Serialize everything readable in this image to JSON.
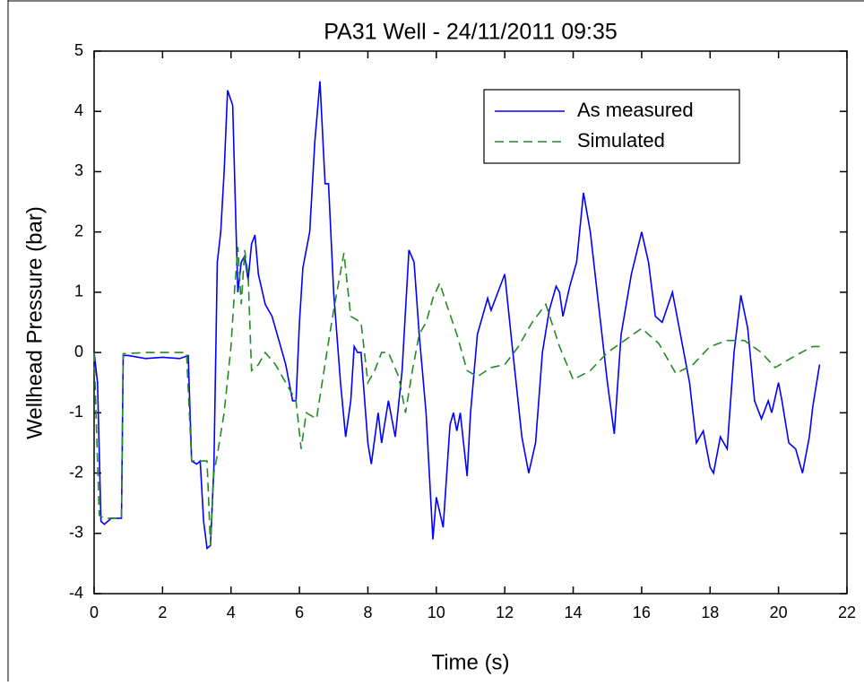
{
  "chart_data": {
    "type": "line",
    "title": "PA31 Well - 24/11/2011 09:35",
    "xlabel": "Time (s)",
    "ylabel": "Wellhead Pressure (bar)",
    "xlim": [
      0,
      22
    ],
    "ylim": [
      -4,
      5
    ],
    "xticks": [
      0,
      2,
      4,
      6,
      8,
      10,
      12,
      14,
      16,
      18,
      20,
      22
    ],
    "yticks": [
      -4,
      -3,
      -2,
      -1,
      0,
      1,
      2,
      3,
      4,
      5
    ],
    "legend": "upper right",
    "series": [
      {
        "name": "As measured",
        "color": "#0000ff",
        "dash": "solid",
        "x": [
          0,
          0.1,
          0.2,
          0.3,
          0.5,
          0.7,
          0.8,
          0.85,
          1.0,
          1.5,
          2.0,
          2.5,
          2.75,
          2.85,
          3.0,
          3.1,
          3.2,
          3.3,
          3.4,
          3.5,
          3.6,
          3.7,
          3.8,
          3.9,
          4.05,
          4.15,
          4.2,
          4.3,
          4.4,
          4.5,
          4.6,
          4.7,
          4.8,
          5.0,
          5.2,
          5.4,
          5.6,
          5.8,
          5.9,
          6.0,
          6.1,
          6.3,
          6.45,
          6.6,
          6.75,
          6.85,
          7.0,
          7.2,
          7.35,
          7.5,
          7.6,
          7.7,
          7.8,
          8.0,
          8.1,
          8.3,
          8.4,
          8.6,
          8.8,
          9.0,
          9.2,
          9.35,
          9.5,
          9.7,
          9.9,
          10.0,
          10.2,
          10.4,
          10.5,
          10.6,
          10.7,
          10.9,
          11.0,
          11.2,
          11.5,
          11.6,
          11.8,
          12.0,
          12.2,
          12.5,
          12.7,
          12.9,
          13.1,
          13.3,
          13.5,
          13.6,
          13.7,
          13.9,
          14.1,
          14.3,
          14.5,
          14.8,
          15.0,
          15.2,
          15.4,
          15.7,
          16.0,
          16.2,
          16.4,
          16.6,
          16.9,
          17.1,
          17.4,
          17.6,
          17.8,
          18.0,
          18.1,
          18.3,
          18.5,
          18.7,
          18.9,
          19.1,
          19.3,
          19.5,
          19.7,
          19.8,
          20.0,
          20.1,
          20.3,
          20.5,
          20.7,
          20.9,
          21.0,
          21.2
        ],
        "values": [
          0,
          -0.5,
          -2.8,
          -2.85,
          -2.75,
          -2.75,
          -2.75,
          -0.05,
          -0.05,
          -0.1,
          -0.08,
          -0.1,
          -0.05,
          -1.8,
          -1.85,
          -1.8,
          -2.8,
          -3.25,
          -3.2,
          -1.9,
          1.5,
          2.0,
          3.0,
          4.35,
          4.1,
          2.0,
          1.0,
          1.5,
          1.6,
          1.2,
          1.8,
          1.95,
          1.3,
          0.8,
          0.6,
          0.2,
          -0.2,
          -0.8,
          -0.8,
          0.5,
          1.4,
          2.0,
          3.5,
          4.5,
          2.8,
          2.8,
          1.0,
          -0.5,
          -1.4,
          -0.8,
          0.1,
          0.0,
          0.0,
          -1.5,
          -1.85,
          -1.0,
          -1.5,
          -0.8,
          -1.4,
          -0.3,
          1.7,
          1.5,
          0.3,
          -1.0,
          -3.1,
          -2.4,
          -2.9,
          -1.2,
          -1.0,
          -1.3,
          -1.0,
          -2.05,
          -1.0,
          0.3,
          0.9,
          0.7,
          1.0,
          1.3,
          0.2,
          -1.4,
          -2.0,
          -1.5,
          0.0,
          0.7,
          1.1,
          1.0,
          0.6,
          1.1,
          1.5,
          2.65,
          2.0,
          0.5,
          -0.5,
          -1.35,
          0.3,
          1.3,
          2.0,
          1.5,
          0.6,
          0.5,
          1.0,
          0.4,
          -0.5,
          -1.5,
          -1.3,
          -1.9,
          -2.0,
          -1.4,
          -1.6,
          0.0,
          0.95,
          0.4,
          -0.8,
          -1.1,
          -0.8,
          -1.0,
          -0.5,
          -0.8,
          -1.5,
          -1.6,
          -2.0,
          -1.4,
          -0.9,
          -0.2
        ]
      },
      {
        "name": "Simulated",
        "color": "#228b22",
        "dash": "dashed",
        "x": [
          0,
          0.15,
          0.3,
          0.6,
          0.8,
          0.85,
          1.5,
          2.7,
          2.85,
          3.3,
          3.4,
          3.5,
          3.6,
          3.8,
          4.0,
          4.1,
          4.2,
          4.3,
          4.4,
          4.5,
          4.6,
          4.8,
          5.0,
          5.3,
          5.6,
          5.9,
          6.05,
          6.2,
          6.5,
          6.8,
          7.0,
          7.3,
          7.5,
          7.8,
          8.0,
          8.2,
          8.4,
          8.6,
          8.9,
          9.1,
          9.3,
          9.5,
          9.7,
          9.9,
          10.1,
          10.3,
          10.6,
          10.9,
          11.2,
          11.6,
          12.0,
          12.4,
          12.8,
          13.2,
          13.6,
          14.0,
          14.5,
          15.0,
          15.5,
          16.0,
          16.5,
          17.0,
          17.5,
          18.0,
          18.5,
          19.0,
          19.5,
          19.9,
          20.5,
          21.0,
          21.2
        ],
        "values": [
          0,
          -2.7,
          -2.75,
          -2.75,
          -2.75,
          -0.02,
          0.0,
          0.0,
          -1.8,
          -1.8,
          -3.2,
          -2.0,
          -1.7,
          -1.0,
          0.1,
          1.0,
          1.75,
          0.8,
          1.7,
          1.3,
          -0.3,
          -0.2,
          0.0,
          -0.2,
          -0.5,
          -0.8,
          -1.6,
          -1.0,
          -1.1,
          0.0,
          0.7,
          1.65,
          0.6,
          0.5,
          -0.5,
          -0.3,
          0.0,
          0.0,
          -0.4,
          -1.0,
          -0.3,
          0.3,
          0.5,
          0.9,
          1.15,
          0.8,
          0.3,
          -0.3,
          -0.4,
          -0.25,
          -0.2,
          0.1,
          0.5,
          0.8,
          0.1,
          -0.45,
          -0.3,
          0.0,
          0.2,
          0.4,
          0.15,
          -0.35,
          -0.2,
          0.1,
          0.2,
          0.2,
          0.0,
          -0.25,
          -0.05,
          0.1,
          0.1
        ]
      }
    ]
  }
}
